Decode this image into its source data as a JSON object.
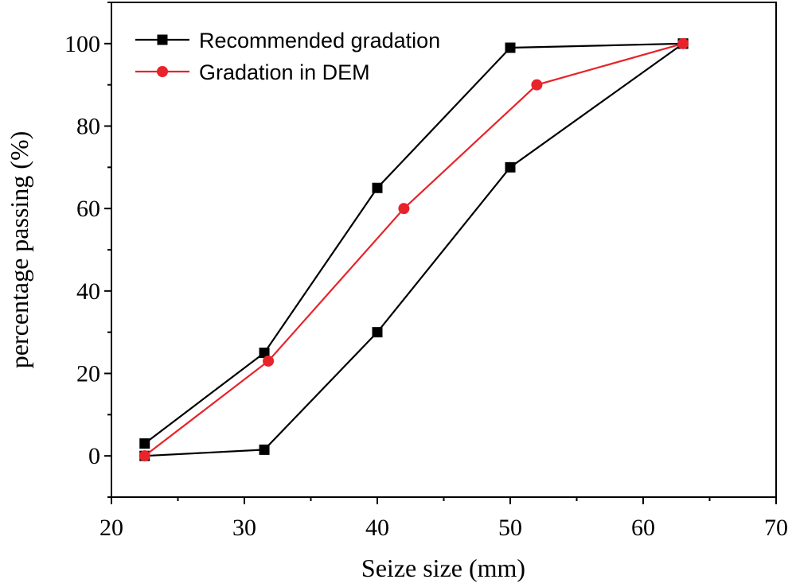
{
  "chart_data": {
    "type": "line",
    "title": "",
    "xlabel": "Seize size (mm)",
    "ylabel": "percentage passing (%)",
    "xlim": [
      20,
      70
    ],
    "ylim": [
      -10,
      110
    ],
    "xticks": [
      20,
      30,
      40,
      50,
      60,
      70
    ],
    "yticks": [
      0,
      20,
      40,
      60,
      80,
      100
    ],
    "grid": false,
    "legend_position": "top-left",
    "series": [
      {
        "name": "Recommended gradation",
        "color": "#000000",
        "marker": "square",
        "segments": [
          {
            "x": [
              22.5,
              31.5,
              40,
              50,
              63
            ],
            "y": [
              3,
              25,
              65,
              99,
              100
            ]
          },
          {
            "x": [
              22.5,
              31.5,
              40,
              50,
              63
            ],
            "y": [
              0,
              1.5,
              30,
              70,
              100
            ]
          }
        ]
      },
      {
        "name": "Gradation in DEM",
        "color": "#e8232a",
        "marker": "circle",
        "segments": [
          {
            "x": [
              22.5,
              31.8,
              42,
              52,
              63
            ],
            "y": [
              0,
              23,
              60,
              90,
              100
            ]
          }
        ]
      }
    ]
  }
}
